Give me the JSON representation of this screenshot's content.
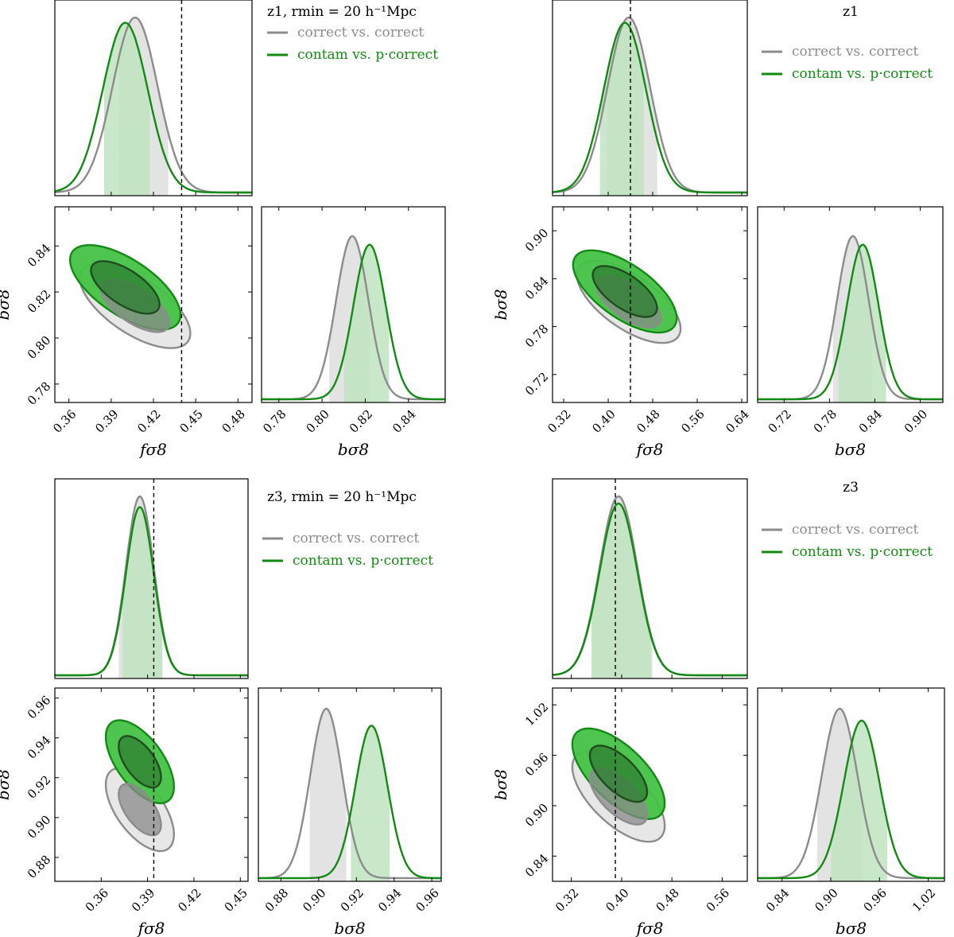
{
  "colors": {
    "grey": "#8c8c8c",
    "grey_fill_light": "#e6e6e6",
    "grey_fill_dark": "#8a8a8a",
    "green": "#138a13",
    "green_fill_light": "#45c245",
    "green_fill_dark": "#2e7d32",
    "green_band": "#bfe3bf",
    "grey_band": "#e3e3e3"
  },
  "legend": {
    "entries": [
      "correct vs. correct",
      "contam vs. p·correct"
    ]
  },
  "axis_labels": {
    "f": "fσ8",
    "b": "bσ8"
  },
  "chart_data": [
    {
      "type": "corner",
      "id": "z1_rmin20",
      "title": "z1, rmin = 20 h⁻¹Mpc",
      "truth_f": 0.44,
      "f_range": [
        0.35,
        0.49
      ],
      "b_range": [
        0.772,
        0.857
      ],
      "f_ticks": [
        "0.36",
        "0.39",
        "0.42",
        "0.45",
        "0.48"
      ],
      "b_ticks": [
        "0.78",
        "0.80",
        "0.82",
        "0.84"
      ],
      "series": [
        {
          "name": "correct vs. correct",
          "f_mean": 0.407,
          "f_sigma": 0.016,
          "b_mean": 0.814,
          "b_sigma": 0.0075,
          "corr": -0.65,
          "f_band": [
            0.395,
            0.431
          ],
          "b_band": [
            0.803,
            0.822
          ],
          "f_peak": 1.0,
          "b_peak": 0.95
        },
        {
          "name": "contam vs. p·correct",
          "f_mean": 0.4,
          "f_sigma": 0.016,
          "b_mean": 0.822,
          "b_sigma": 0.0075,
          "corr": -0.65,
          "f_band": [
            0.385,
            0.418
          ],
          "b_band": [
            0.81,
            0.831
          ],
          "f_peak": 0.97,
          "b_peak": 0.9
        }
      ]
    },
    {
      "type": "corner",
      "id": "z1",
      "title": "z1",
      "truth_f": 0.44,
      "f_range": [
        0.3,
        0.65
      ],
      "b_range": [
        0.685,
        0.93
      ],
      "f_ticks": [
        "0.32",
        "0.40",
        "0.48",
        "0.56",
        "0.64"
      ],
      "b_ticks": [
        "0.72",
        "0.78",
        "0.84",
        "0.90"
      ],
      "series": [
        {
          "name": "correct vs. correct",
          "f_mean": 0.437,
          "f_sigma": 0.038,
          "b_mean": 0.811,
          "b_sigma": 0.021,
          "corr": -0.65,
          "f_band": [
            0.397,
            0.49
          ],
          "b_band": [
            0.784,
            0.838
          ],
          "f_peak": 1.0,
          "b_peak": 0.95
        },
        {
          "name": "contam vs. p·correct",
          "f_mean": 0.43,
          "f_sigma": 0.038,
          "b_mean": 0.824,
          "b_sigma": 0.021,
          "corr": -0.65,
          "f_band": [
            0.385,
            0.466
          ],
          "b_band": [
            0.792,
            0.856
          ],
          "f_peak": 0.97,
          "b_peak": 0.9
        }
      ]
    },
    {
      "type": "corner",
      "id": "z3_rmin20",
      "title": "z3, rmin = 20 h⁻¹Mpc",
      "truth_f": 0.394,
      "f_range": [
        0.33,
        0.455
      ],
      "b_range": [
        0.868,
        0.965
      ],
      "f_ticks": [
        "0.36",
        "0.39",
        "0.42",
        "0.45"
      ],
      "b_ticks": [
        "0.88",
        "0.90",
        "0.92",
        "0.94",
        "0.96"
      ],
      "series": [
        {
          "name": "correct vs. correct",
          "f_mean": 0.385,
          "f_sigma": 0.009,
          "b_mean": 0.904,
          "b_sigma": 0.0085,
          "corr": -0.6,
          "f_band": [
            0.371,
            0.4
          ],
          "b_band": [
            0.895,
            0.915
          ],
          "f_peak": 1.0,
          "b_peak": 1.0
        },
        {
          "name": "contam vs. p·correct",
          "f_mean": 0.385,
          "f_sigma": 0.009,
          "b_mean": 0.928,
          "b_sigma": 0.0085,
          "corr": -0.6,
          "f_band": [
            0.373,
            0.4
          ],
          "b_band": [
            0.917,
            0.938
          ],
          "f_peak": 0.94,
          "b_peak": 0.9
        }
      ]
    },
    {
      "type": "corner",
      "id": "z3",
      "title": "z3",
      "truth_f": 0.39,
      "f_range": [
        0.29,
        0.6
      ],
      "b_range": [
        0.81,
        1.04
      ],
      "f_ticks": [
        "0.32",
        "0.40",
        "0.48",
        "0.56"
      ],
      "b_ticks": [
        "0.84",
        "0.90",
        "0.96",
        "1.02"
      ],
      "series": [
        {
          "name": "correct vs. correct",
          "f_mean": 0.395,
          "f_sigma": 0.03,
          "b_mean": 0.911,
          "b_sigma": 0.022,
          "corr": -0.65,
          "f_band": [
            0.352,
            0.45
          ],
          "b_band": [
            0.882,
            0.94
          ],
          "f_peak": 1.0,
          "b_peak": 1.0
        },
        {
          "name": "contam vs. p·correct",
          "f_mean": 0.395,
          "f_sigma": 0.03,
          "b_mean": 0.938,
          "b_sigma": 0.022,
          "corr": -0.65,
          "f_band": [
            0.352,
            0.447
          ],
          "b_band": [
            0.9,
            0.97
          ],
          "f_peak": 0.96,
          "b_peak": 0.93
        }
      ]
    }
  ]
}
